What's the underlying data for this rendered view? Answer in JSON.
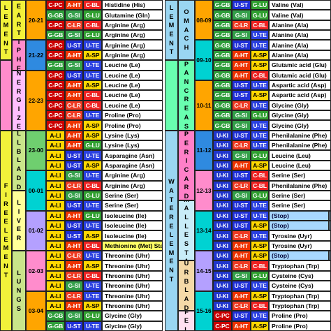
{
  "colors": {
    "element_fire": "#f2f23a",
    "element_water": "#9ad6f2",
    "organ_heart": "#f2f23a",
    "organ_peri": "#ff8ccc",
    "organ_tw": "#ffbfff",
    "organ_gb": "#c9e58a",
    "organ_liver": "#ffff9a",
    "organ_lungs": "#c9e58a",
    "organ_stomach": "#9ad6f2",
    "organ_pancreas": "#69ffb0",
    "organ_pericard": "#ff80c8",
    "organ_si": "#c8ecf8",
    "organ_ub": "#f5d9a8",
    "organ_fel": "#ffe0f0",
    "time_orange": "#ffa500",
    "time_blue": "#2f8ae0",
    "time_green": "#6fcf6f",
    "time_teal": "#00d2d2",
    "time_pink": "#ff8ccc",
    "time_purple": "#b4a0ff",
    "stop_bar": "#9ad6f2",
    "light_blue": "#a8d8ff",
    "text_white": "#ffffff",
    "text_black": "#000000",
    "text_red": "#c00000",
    "codes": {
      "C-PC": "#cc0000",
      "A-HT": "#ee3300",
      "C-BL": "#ee2222",
      "C-LR": "#ee3a22",
      "G-GB": "#2e9e3a",
      "G-SI": "#34a04a",
      "G-LU": "#30a030",
      "G-BL": "#2e9e3a",
      "U-ST": "#2030d8",
      "U-TE": "#2a40e0",
      "U-KI": "#2035cc",
      "A-LI": "#ffd700",
      "A-SP": "#ffd700",
      "aa_yellow": "#ffff66",
      "aa_blue": "#dff0ff",
      "aa_white": "#ffffff"
    }
  },
  "left": {
    "element_top": "LEMENT",
    "element_bottom": "FIRE ELEMENT",
    "organs": {
      "heart": "EART",
      "peri": "PERIPHERIE",
      "tw": "ENERGIZER",
      "gb": "GALL BLADDER",
      "liver": "LIVER",
      "lungs": "LUNGS"
    },
    "times": [
      "20-21",
      "21-22",
      "22-23",
      "23-00",
      "00-01",
      "01-02",
      "02-03",
      "03-04"
    ],
    "rows": [
      {
        "c": [
          "C-PC",
          "A-HT",
          "C-BL"
        ],
        "aa": "Histidine (His)"
      },
      {
        "c": [
          "G-GB",
          "G-SI",
          "G-LU"
        ],
        "aa": "Glutamine (Gln)"
      },
      {
        "c": [
          "C-PC",
          "C-LR",
          "C-BL"
        ],
        "aa": "Arginine (Arg)"
      },
      {
        "c": [
          "G-GB",
          "G-SI",
          "G-LU"
        ],
        "aa": "Arginine (Arg)"
      },
      {
        "c": [
          "C-PC",
          "U-ST",
          "U-TE"
        ],
        "aa": "Arginine (Arg)"
      },
      {
        "c": [
          "C-PC",
          "A-HT",
          "A-SP"
        ],
        "aa": "Arginine (Arg)"
      },
      {
        "c": [
          "G-GB",
          "G-SI",
          "U-TE"
        ],
        "aa": "Leucine (Le)"
      },
      {
        "c": [
          "C-PC",
          "U-ST",
          "U-TE"
        ],
        "aa": "Leucine (Le)"
      },
      {
        "c": [
          "C-PC",
          "A-HT",
          "A-SP"
        ],
        "aa": "Leucine (Le)"
      },
      {
        "c": [
          "C-PC",
          "A-HT",
          "C-BL"
        ],
        "aa": "Leucine (Le)"
      },
      {
        "c": [
          "C-PC",
          "C-LR",
          "C-BL"
        ],
        "aa": "Leucine (Le)"
      },
      {
        "c": [
          "C-PC",
          "C-LR",
          "U-TE"
        ],
        "aa": "Proline (Pro)"
      },
      {
        "c": [
          "C-PC",
          "A-HT",
          "A-SP"
        ],
        "aa": "Proline (Pro)"
      },
      {
        "c": [
          "A-LI",
          "A-HT",
          "A-SP"
        ],
        "aa": "Lysine (Lys)"
      },
      {
        "c": [
          "A-LI",
          "A-HT",
          "G-LU"
        ],
        "aa": "Lysine (Lys)"
      },
      {
        "c": [
          "A-LI",
          "U-ST",
          "U-TE"
        ],
        "aa": "Asparagine (Asn)"
      },
      {
        "c": [
          "A-LI",
          "U-ST",
          "A-SP"
        ],
        "aa": "Asparagine (Asn)"
      },
      {
        "c": [
          "A-LI",
          "G-SI",
          "U-TE"
        ],
        "aa": "Arginine (Arg)"
      },
      {
        "c": [
          "A-LI",
          "C-LR",
          "C-BL"
        ],
        "aa": "Arginine (Arg)"
      },
      {
        "c": [
          "A-LI",
          "G-SI",
          "G-LU"
        ],
        "aa": "Serine (Ser)"
      },
      {
        "c": [
          "A-LI",
          "U-ST",
          "U-TE"
        ],
        "aa": "Serine (Ser)"
      },
      {
        "c": [
          "A-LI",
          "A-HT",
          "G-LU"
        ],
        "aa": "Isoleucine (Ile)"
      },
      {
        "c": [
          "A-LI",
          "U-ST",
          "U-TE"
        ],
        "aa": "Isoleucine (Ile)"
      },
      {
        "c": [
          "A-LI",
          "U-ST",
          "A-SP"
        ],
        "aa": "Isoleucine (Ile)"
      },
      {
        "c": [
          "A-LI",
          "A-HT",
          "C-BL"
        ],
        "aa": "Methionine (Met) Start"
      },
      {
        "c": [
          "A-LI",
          "C-LR",
          "U-TE"
        ],
        "aa": "Threonine (Uhr)"
      },
      {
        "c": [
          "A-LI",
          "A-HT",
          "A-SP"
        ],
        "aa": "Threonine (Uhr)"
      },
      {
        "c": [
          "A-LI",
          "C-LR",
          "C-BL"
        ],
        "aa": "Threonine (Uhr)"
      },
      {
        "c": [
          "A-LI",
          "G-SI",
          "U-TE"
        ],
        "aa": "Threonine (Uhr)"
      },
      {
        "c": [
          "A-LI",
          "C-LR",
          "U-TE"
        ],
        "aa": "Threonine (Uhr)"
      },
      {
        "c": [
          "A-LI",
          "A-HT",
          "A-SP"
        ],
        "aa": "Threonine (Uhr)"
      },
      {
        "c": [
          "G-GB",
          "G-SI",
          "G-LU"
        ],
        "aa": "Glycine (Gly)"
      },
      {
        "c": [
          "G-GB",
          "U-ST",
          "U-TE"
        ],
        "aa": "Glycine (Gly)"
      }
    ]
  },
  "right": {
    "element_top": "LEMENT",
    "element_bottom": "WATER ELEMENT",
    "organs": {
      "stomach": "OMACH",
      "pancreas": "PANCREAS",
      "pericard": "PERICARD",
      "si": "SIMALLESTANE",
      "ub": "URBLAD",
      "fel": "FEL"
    },
    "times": [
      "08-09",
      "09-10",
      "10-11",
      "11-12",
      "12-13",
      "13-14",
      "14-15",
      "15-16"
    ],
    "rows": [
      {
        "c": [
          "G-GB",
          "U-ST",
          "G-LU"
        ],
        "aa": "Valine (Val)"
      },
      {
        "c": [
          "G-GB",
          "G-SI",
          "G-LU"
        ],
        "aa": "Valine (Val)"
      },
      {
        "c": [
          "G-GB",
          "C-LR",
          "C-BL"
        ],
        "aa": "Alanine (Ala)"
      },
      {
        "c": [
          "G-GB",
          "G-SI",
          "U-TE"
        ],
        "aa": "Alanine (Ala)"
      },
      {
        "c": [
          "G-GB",
          "U-ST",
          "U-TE"
        ],
        "aa": "Alanine (Ala)"
      },
      {
        "c": [
          "G-GB",
          "A-HT",
          "A-SP"
        ],
        "aa": "Alanine (Ala)"
      },
      {
        "c": [
          "G-GB",
          "A-HT",
          "A-SP"
        ],
        "aa": "Glutamic acid (Glu)"
      },
      {
        "c": [
          "G-GB",
          "A-HT",
          "C-BL"
        ],
        "aa": "Glutamic acid (Glu)"
      },
      {
        "c": [
          "G-GB",
          "U-ST",
          "U-TE"
        ],
        "aa": "Aspartic acid (Asp)"
      },
      {
        "c": [
          "G-GB",
          "U-ST",
          "A-SP"
        ],
        "aa": "Aspartic acid (Asp)"
      },
      {
        "c": [
          "G-GB",
          "C-LR",
          "U-TE"
        ],
        "aa": "Glycine (Gly)"
      },
      {
        "c": [
          "G-GB",
          "G-SI",
          "G-LU"
        ],
        "aa": "Glycine (Gly)"
      },
      {
        "c": [
          "G-GB",
          "G-SI",
          "U-TE"
        ],
        "aa": "Glycine (Gly)"
      },
      {
        "c": [
          "U-KI",
          "U-ST",
          "U-TE"
        ],
        "aa": "Phenilalanine (Phe)"
      },
      {
        "c": [
          "U-KI",
          "C-LR",
          "U-TE"
        ],
        "aa": "Phenilalanine (Phe)"
      },
      {
        "c": [
          "U-KI",
          "G-SI",
          "G-LU"
        ],
        "aa": "Leucine (Leu)"
      },
      {
        "c": [
          "U-KI",
          "A-HT",
          "A-SP"
        ],
        "aa": "Leucine (Leu)"
      },
      {
        "c": [
          "U-KI",
          "U-ST",
          "C-BL"
        ],
        "aa": "Serine (Ser)"
      },
      {
        "c": [
          "U-KI",
          "C-LR",
          "C-BL"
        ],
        "aa": "Phenilalanine (Phe)"
      },
      {
        "c": [
          "U-KI",
          "G-SI",
          "G-LU"
        ],
        "aa": "Serine (Ser)"
      },
      {
        "c": [
          "U-KI",
          "U-ST",
          "U-TE"
        ],
        "aa": "Serine (Ser)"
      },
      {
        "c": [
          "U-KI",
          "U-ST",
          "U-TE"
        ],
        "aa": "(Stop)",
        "bar": 60
      },
      {
        "c": [
          "U-KI",
          "U-ST",
          "A-SP"
        ],
        "aa": "(Stop)",
        "bar": 60
      },
      {
        "c": [
          "U-KI",
          "C-LR",
          "U-TE"
        ],
        "aa": "Tyrosine (Uyr)"
      },
      {
        "c": [
          "U-KI",
          "A-HT",
          "A-SP"
        ],
        "aa": "Tyrosine (Uyr)"
      },
      {
        "c": [
          "U-KI",
          "A-HT",
          "A-SP"
        ],
        "aa": "(Stop)",
        "bar": 60
      },
      {
        "c": [
          "U-KI",
          "C-LR",
          "C-BL"
        ],
        "aa": "Tryptophan (Trp)"
      },
      {
        "c": [
          "U-KI",
          "G-SI",
          "G-LU"
        ],
        "aa": "Cysteine (Cys)"
      },
      {
        "c": [
          "U-KI",
          "U-ST",
          "U-TE"
        ],
        "aa": "Cysteine (Cys)"
      },
      {
        "c": [
          "U-KI",
          "A-HT",
          "A-SP"
        ],
        "aa": "Tryptophan (Trp)"
      },
      {
        "c": [
          "U-KI",
          "C-LR",
          "C-BL"
        ],
        "aa": "Tryptophan (Trp)"
      },
      {
        "c": [
          "C-PC",
          "U-ST",
          "U-TE"
        ],
        "aa": "Proline (Pro)"
      },
      {
        "c": [
          "C-PC",
          "A-HT",
          "A-SP"
        ],
        "aa": "Proline (Pro)"
      }
    ]
  }
}
